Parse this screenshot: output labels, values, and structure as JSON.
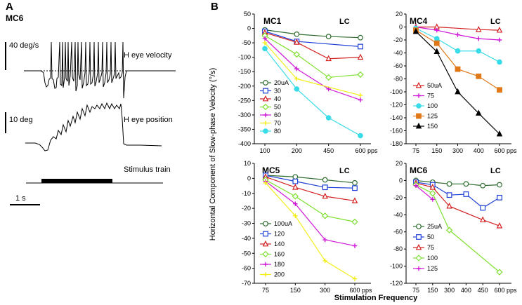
{
  "panel_a": {
    "letter": "A",
    "cell": "MC6",
    "velocity_scale": "40 deg/s",
    "velocity_label": "H eye velocity",
    "position_scale": "10 deg",
    "position_label": "H eye position",
    "stimulus_label": "Stimulus train",
    "time_scale": "1 s"
  },
  "panel_b": {
    "letter": "B",
    "ylabel": "Horizontal Component of Slow-phase Velocity (°/s)",
    "xlabel": "Stimulation Frequency"
  },
  "colors": {
    "dark_green": "#2e6b2e",
    "blue": "#1f3fd6",
    "red": "#d42020",
    "light_green": "#7ee02e",
    "magenta": "#d018d8",
    "yellow": "#f2ee18",
    "cyan": "#38dce8",
    "orange": "#e07818",
    "black": "#000000"
  },
  "chart_data": [
    {
      "type": "line",
      "title": "MC1",
      "tag": "LC",
      "unit": "pps",
      "categories": [
        "100",
        "200",
        "450",
        "600"
      ],
      "yticks": [
        50,
        0,
        -50,
        -100,
        -150,
        -200,
        -250,
        -300,
        -350,
        -400
      ],
      "ylim": [
        -400,
        50
      ],
      "legend_position": "left",
      "series": [
        {
          "name": "20uA",
          "color": "#2e6b2e",
          "marker": "circle",
          "values": [
            -5,
            -20,
            -28,
            -32
          ]
        },
        {
          "name": "30",
          "color": "#1f3fd6",
          "marker": "square",
          "values": [
            -10,
            -45,
            null,
            -63
          ]
        },
        {
          "name": "40",
          "color": "#d42020",
          "marker": "triangle",
          "values": [
            -15,
            -48,
            -105,
            -100
          ]
        },
        {
          "name": "50",
          "color": "#7ee02e",
          "marker": "diamond",
          "values": [
            -25,
            -90,
            -170,
            -160
          ]
        },
        {
          "name": "60",
          "color": "#d018d8",
          "marker": "plus",
          "values": [
            -35,
            -140,
            -210,
            -248
          ]
        },
        {
          "name": "70",
          "color": "#f2ee18",
          "marker": "plus",
          "values": [
            -50,
            -175,
            null,
            -232
          ]
        },
        {
          "name": "80",
          "color": "#38dce8",
          "marker": "dot",
          "values": [
            -70,
            -210,
            -310,
            -372
          ]
        }
      ]
    },
    {
      "type": "line",
      "title": "MC4",
      "tag": "LC",
      "unit": "pps",
      "categories": [
        "75",
        "150",
        "300",
        "400",
        "600"
      ],
      "yticks": [
        20,
        0,
        -20,
        -40,
        -60,
        -80,
        -100,
        -120,
        -140,
        -160,
        -180
      ],
      "ylim": [
        -180,
        20
      ],
      "legend_position": "left",
      "series": [
        {
          "name": "50uA",
          "color": "#d42020",
          "marker": "triangle",
          "values": [
            0,
            0,
            null,
            -4,
            -5
          ]
        },
        {
          "name": "75",
          "color": "#d018d8",
          "marker": "plus",
          "values": [
            0,
            -5,
            -12,
            -18,
            -20
          ]
        },
        {
          "name": "100",
          "color": "#38dce8",
          "marker": "dot",
          "values": [
            -2,
            -18,
            -37,
            -37,
            -54
          ]
        },
        {
          "name": "125",
          "color": "#e07818",
          "marker": "square",
          "values": [
            -5,
            -25,
            -65,
            -76,
            -97
          ]
        },
        {
          "name": "150",
          "color": "#000000",
          "marker": "triangle",
          "values": [
            -7,
            -38,
            -100,
            -133,
            -165
          ]
        }
      ]
    },
    {
      "type": "line",
      "title": "MC5",
      "tag": "LC",
      "unit": "pps",
      "categories": [
        "75",
        "150",
        "300",
        "600"
      ],
      "yticks": [
        10,
        0,
        -10,
        -20,
        -30,
        -40,
        -50,
        -60,
        -70
      ],
      "ylim": [
        -70,
        10
      ],
      "legend_position": "left",
      "series": [
        {
          "name": "100uA",
          "color": "#2e6b2e",
          "marker": "circle",
          "values": [
            2,
            1,
            -1,
            -3
          ]
        },
        {
          "name": "120",
          "color": "#1f3fd6",
          "marker": "square",
          "values": [
            2,
            -2,
            -6,
            -6.5
          ]
        },
        {
          "name": "140",
          "color": "#d42020",
          "marker": "triangle",
          "values": [
            1,
            -6,
            -12,
            -15
          ]
        },
        {
          "name": "160",
          "color": "#7ee02e",
          "marker": "diamond",
          "values": [
            -1,
            -12,
            -25,
            -29
          ]
        },
        {
          "name": "180",
          "color": "#d018d8",
          "marker": "plus",
          "values": [
            -2,
            -17,
            -41,
            -45
          ]
        },
        {
          "name": "200",
          "color": "#f2ee18",
          "marker": "plus",
          "values": [
            -3,
            -25,
            -55,
            -67
          ]
        }
      ]
    },
    {
      "type": "line",
      "title": "MC6",
      "tag": "LC",
      "unit": "pps",
      "categories": [
        "75",
        "150",
        "300",
        "400",
        "450",
        "600"
      ],
      "yticks": [
        20,
        0,
        -20,
        -40,
        -60,
        -80,
        -100,
        -120
      ],
      "ylim": [
        -120,
        20
      ],
      "legend_position": "left",
      "series": [
        {
          "name": "25uA",
          "color": "#2e6b2e",
          "marker": "circle",
          "values": [
            0,
            -2,
            -4,
            -4,
            -6,
            -5
          ]
        },
        {
          "name": "50",
          "color": "#1f3fd6",
          "marker": "square",
          "values": [
            -2,
            -5,
            -17,
            -16,
            -32,
            -20
          ]
        },
        {
          "name": "75",
          "color": "#d42020",
          "marker": "triangle",
          "values": [
            -3,
            -8,
            -30,
            null,
            -46,
            -53
          ]
        },
        {
          "name": "100",
          "color": "#7ee02e",
          "marker": "diamond",
          "values": [
            -5,
            -15,
            -58,
            null,
            null,
            -107
          ]
        },
        {
          "name": "125",
          "color": "#d018d8",
          "marker": "plus",
          "values": [
            -6,
            -22,
            null,
            null,
            null,
            null
          ]
        }
      ]
    }
  ]
}
